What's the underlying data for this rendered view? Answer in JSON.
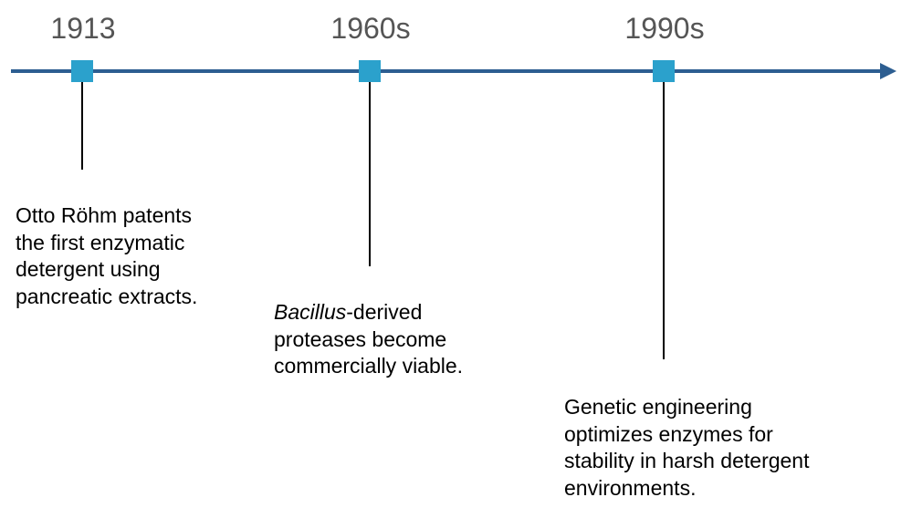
{
  "timeline": {
    "events": [
      {
        "year": "1913",
        "lines": [
          "Otto Röhm patents",
          "the first enzymatic",
          "detergent using",
          "pancreatic extracts."
        ]
      },
      {
        "year": "1960s",
        "italic": "Bacillus",
        "first_rest": "-derived",
        "lines": [
          "proteases become",
          "commercially viable."
        ]
      },
      {
        "year": "1990s",
        "lines": [
          "Genetic engineering",
          "optimizes enzymes for",
          "stability in harsh detergent",
          "environments."
        ]
      }
    ],
    "colors": {
      "axis": "#2d5e91",
      "marker": "#2ba1cc",
      "year_text": "#555555",
      "connector": "#000000"
    }
  }
}
